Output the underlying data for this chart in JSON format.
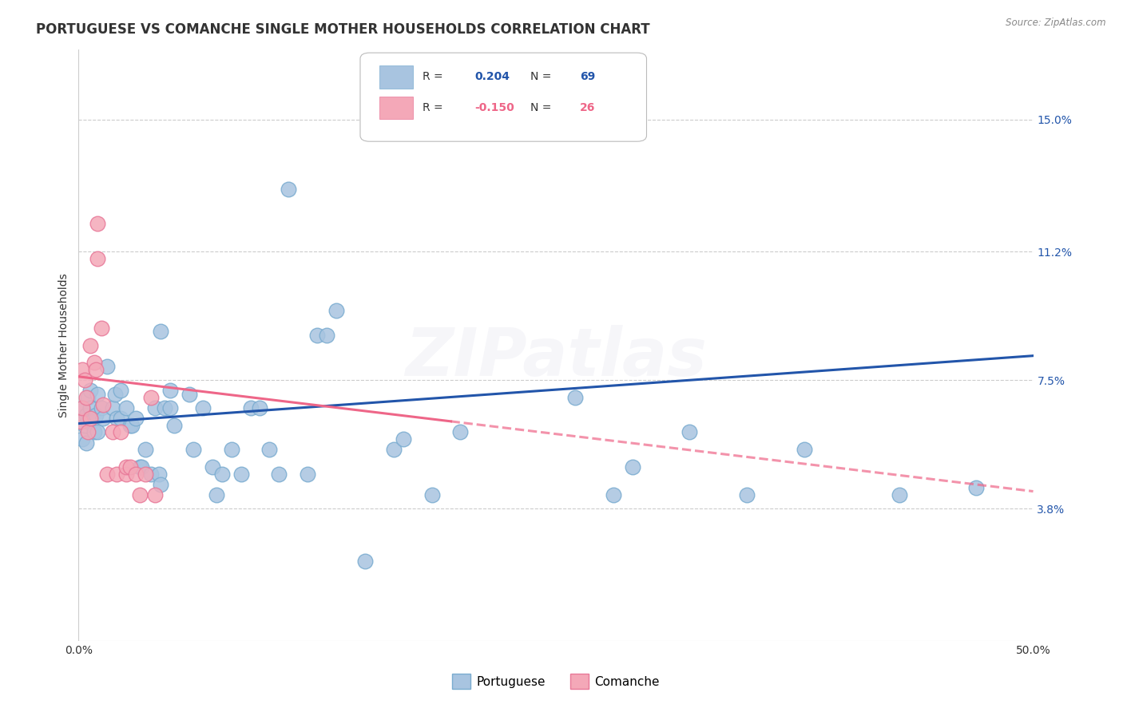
{
  "title": "PORTUGUESE VS COMANCHE SINGLE MOTHER HOUSEHOLDS CORRELATION CHART",
  "source": "Source: ZipAtlas.com",
  "ylabel": "Single Mother Households",
  "xlim": [
    0.0,
    0.5
  ],
  "ylim": [
    0.0,
    0.17
  ],
  "yticks": [
    0.038,
    0.075,
    0.112,
    0.15
  ],
  "ytick_labels": [
    "3.8%",
    "7.5%",
    "11.2%",
    "15.0%"
  ],
  "xticks": [
    0.0,
    0.1,
    0.2,
    0.3,
    0.4,
    0.5
  ],
  "xtick_labels": [
    "0.0%",
    "",
    "",
    "",
    "",
    "50.0%"
  ],
  "blue_color": "#A8C4E0",
  "pink_color": "#F4A8B8",
  "blue_edge_color": "#7AACD0",
  "pink_edge_color": "#E87898",
  "blue_line_color": "#2255AA",
  "pink_line_color": "#EE6688",
  "background_color": "#FFFFFF",
  "grid_color": "#CCCCCC",
  "watermark": "ZIPatlas",
  "portuguese_points": [
    [
      0.001,
      0.063
    ],
    [
      0.002,
      0.058
    ],
    [
      0.002,
      0.067
    ],
    [
      0.003,
      0.062
    ],
    [
      0.004,
      0.065
    ],
    [
      0.004,
      0.057
    ],
    [
      0.005,
      0.07
    ],
    [
      0.005,
      0.063
    ],
    [
      0.006,
      0.067
    ],
    [
      0.006,
      0.072
    ],
    [
      0.007,
      0.063
    ],
    [
      0.008,
      0.06
    ],
    [
      0.009,
      0.065
    ],
    [
      0.01,
      0.06
    ],
    [
      0.01,
      0.071
    ],
    [
      0.012,
      0.067
    ],
    [
      0.013,
      0.064
    ],
    [
      0.015,
      0.079
    ],
    [
      0.018,
      0.067
    ],
    [
      0.019,
      0.071
    ],
    [
      0.02,
      0.064
    ],
    [
      0.022,
      0.064
    ],
    [
      0.022,
      0.072
    ],
    [
      0.025,
      0.067
    ],
    [
      0.027,
      0.062
    ],
    [
      0.028,
      0.062
    ],
    [
      0.03,
      0.064
    ],
    [
      0.032,
      0.05
    ],
    [
      0.033,
      0.05
    ],
    [
      0.035,
      0.055
    ],
    [
      0.038,
      0.048
    ],
    [
      0.04,
      0.067
    ],
    [
      0.042,
      0.048
    ],
    [
      0.043,
      0.045
    ],
    [
      0.043,
      0.089
    ],
    [
      0.045,
      0.067
    ],
    [
      0.048,
      0.067
    ],
    [
      0.048,
      0.072
    ],
    [
      0.05,
      0.062
    ],
    [
      0.058,
      0.071
    ],
    [
      0.06,
      0.055
    ],
    [
      0.065,
      0.067
    ],
    [
      0.07,
      0.05
    ],
    [
      0.072,
      0.042
    ],
    [
      0.075,
      0.048
    ],
    [
      0.08,
      0.055
    ],
    [
      0.085,
      0.048
    ],
    [
      0.09,
      0.067
    ],
    [
      0.095,
      0.067
    ],
    [
      0.1,
      0.055
    ],
    [
      0.105,
      0.048
    ],
    [
      0.11,
      0.13
    ],
    [
      0.12,
      0.048
    ],
    [
      0.125,
      0.088
    ],
    [
      0.13,
      0.088
    ],
    [
      0.135,
      0.095
    ],
    [
      0.15,
      0.023
    ],
    [
      0.165,
      0.055
    ],
    [
      0.17,
      0.058
    ],
    [
      0.185,
      0.042
    ],
    [
      0.2,
      0.06
    ],
    [
      0.26,
      0.07
    ],
    [
      0.28,
      0.042
    ],
    [
      0.29,
      0.05
    ],
    [
      0.32,
      0.06
    ],
    [
      0.35,
      0.042
    ],
    [
      0.38,
      0.055
    ],
    [
      0.43,
      0.042
    ],
    [
      0.47,
      0.044
    ]
  ],
  "comanche_points": [
    [
      0.001,
      0.063
    ],
    [
      0.002,
      0.067
    ],
    [
      0.002,
      0.078
    ],
    [
      0.003,
      0.075
    ],
    [
      0.004,
      0.07
    ],
    [
      0.005,
      0.06
    ],
    [
      0.006,
      0.064
    ],
    [
      0.006,
      0.085
    ],
    [
      0.008,
      0.08
    ],
    [
      0.009,
      0.078
    ],
    [
      0.01,
      0.12
    ],
    [
      0.01,
      0.11
    ],
    [
      0.012,
      0.09
    ],
    [
      0.013,
      0.068
    ],
    [
      0.015,
      0.048
    ],
    [
      0.018,
      0.06
    ],
    [
      0.02,
      0.048
    ],
    [
      0.022,
      0.06
    ],
    [
      0.025,
      0.048
    ],
    [
      0.025,
      0.05
    ],
    [
      0.027,
      0.05
    ],
    [
      0.03,
      0.048
    ],
    [
      0.032,
      0.042
    ],
    [
      0.035,
      0.048
    ],
    [
      0.038,
      0.07
    ],
    [
      0.04,
      0.042
    ]
  ],
  "blue_trendline": [
    [
      0.0,
      0.0625
    ],
    [
      0.5,
      0.082
    ]
  ],
  "pink_trendline": [
    [
      0.0,
      0.076
    ],
    [
      0.5,
      0.043
    ]
  ],
  "pink_trendline_solid_end": 0.195,
  "title_fontsize": 12,
  "axis_label_fontsize": 10,
  "tick_fontsize": 10,
  "watermark_fontsize": 60,
  "watermark_alpha": 0.1,
  "legend_blue_R": "R =  0.204",
  "legend_blue_N": "N = 69",
  "legend_pink_R": "R = -0.150",
  "legend_pink_N": "N = 26"
}
